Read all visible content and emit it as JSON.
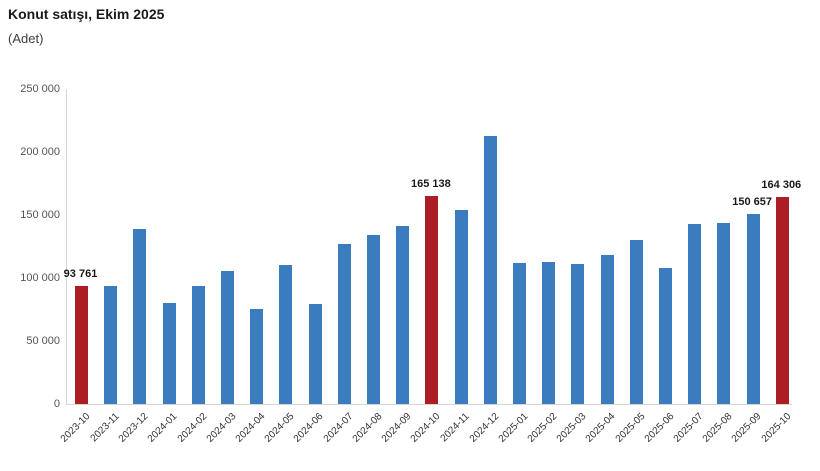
{
  "chart": {
    "title": "Konut satışı, Ekim 2025",
    "subtitle": "(Adet)"
  },
  "chart_data": {
    "type": "bar",
    "title": "Konut satışı, Ekim 2025",
    "ylabel": "(Adet)",
    "xlabel": "",
    "ylim": [
      0,
      250000
    ],
    "ytick_step": 50000,
    "ytick_labels": [
      "0",
      "50 000",
      "100 000",
      "150 000",
      "200 000",
      "250 000"
    ],
    "grid": false,
    "legend": false,
    "colors": {
      "bar": "#3a7cbe",
      "highlight": "#ac1e24",
      "axis": "#d6d6d6",
      "data_label": "#1a1a1a"
    },
    "points": [
      {
        "month": "2023-10",
        "value": 93761,
        "label": "93 761",
        "highlight": true
      },
      {
        "month": "2023-11",
        "value": 93500,
        "label": null,
        "highlight": false
      },
      {
        "month": "2023-12",
        "value": 138500,
        "label": null,
        "highlight": false
      },
      {
        "month": "2024-01",
        "value": 80300,
        "label": null,
        "highlight": false
      },
      {
        "month": "2024-02",
        "value": 93900,
        "label": null,
        "highlight": false
      },
      {
        "month": "2024-03",
        "value": 105500,
        "label": null,
        "highlight": false
      },
      {
        "month": "2024-04",
        "value": 75500,
        "label": null,
        "highlight": false
      },
      {
        "month": "2024-05",
        "value": 110600,
        "label": null,
        "highlight": false
      },
      {
        "month": "2024-06",
        "value": 79300,
        "label": null,
        "highlight": false
      },
      {
        "month": "2024-07",
        "value": 127000,
        "label": null,
        "highlight": false
      },
      {
        "month": "2024-08",
        "value": 134100,
        "label": null,
        "highlight": false
      },
      {
        "month": "2024-09",
        "value": 140900,
        "label": null,
        "highlight": false
      },
      {
        "month": "2024-10",
        "value": 165138,
        "label": "165 138",
        "highlight": true
      },
      {
        "month": "2024-11",
        "value": 153600,
        "label": null,
        "highlight": false
      },
      {
        "month": "2024-12",
        "value": 212600,
        "label": null,
        "highlight": false
      },
      {
        "month": "2025-01",
        "value": 112200,
        "label": null,
        "highlight": false
      },
      {
        "month": "2025-02",
        "value": 112800,
        "label": null,
        "highlight": false
      },
      {
        "month": "2025-03",
        "value": 110800,
        "label": null,
        "highlight": false
      },
      {
        "month": "2025-04",
        "value": 118400,
        "label": null,
        "highlight": false
      },
      {
        "month": "2025-05",
        "value": 130000,
        "label": null,
        "highlight": false
      },
      {
        "month": "2025-06",
        "value": 107700,
        "label": null,
        "highlight": false
      },
      {
        "month": "2025-07",
        "value": 142900,
        "label": null,
        "highlight": false
      },
      {
        "month": "2025-08",
        "value": 143300,
        "label": null,
        "highlight": false
      },
      {
        "month": "2025-09",
        "value": 150657,
        "label": "150 657",
        "highlight": false
      },
      {
        "month": "2025-10",
        "value": 164306,
        "label": "164 306",
        "highlight": true
      }
    ]
  }
}
